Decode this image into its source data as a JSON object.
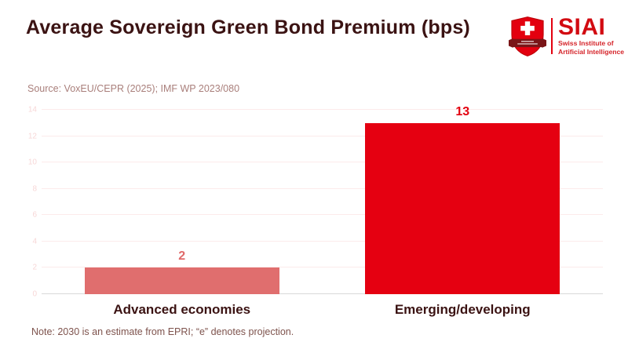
{
  "header": {
    "title": "Average Sovereign Green Bond Premium (bps)",
    "source": "Source: VoxEU/CEPR (2025); IMF WP 2023/080"
  },
  "logo": {
    "acronym": "SIAI",
    "name_line1": "Swiss Institute of",
    "name_line2": "Artificial Intelligence",
    "shield_icon": "swiss-shield-cross-icon",
    "colors": {
      "red": "#e3000f",
      "banner_dark": "#7a1517",
      "acronym_red": "#d20a11"
    }
  },
  "chart_data": {
    "type": "bar",
    "categories": [
      "Advanced economies",
      "Emerging/developing"
    ],
    "values": [
      2,
      13
    ],
    "value_labels": [
      "2",
      "13"
    ],
    "bar_colors": [
      "#e06e6e",
      "#e50011"
    ],
    "value_label_colors": [
      "#e06a6a",
      "#e3000f"
    ],
    "title": "Average Sovereign Green Bond Premium (bps)",
    "xlabel": "",
    "ylabel": "",
    "ylim": [
      0,
      14
    ],
    "yticks": [
      0,
      2,
      4,
      6,
      8,
      10,
      12,
      14
    ],
    "grid": true,
    "legend": false,
    "tick_label_color": "#f7d7d7",
    "grid_color": "#fcebeb",
    "baseline_color": "#d9d9d9",
    "bar_width_fraction": 0.695
  },
  "note": "Note: 2030 is an estimate from EPRI; “e” denotes projection."
}
